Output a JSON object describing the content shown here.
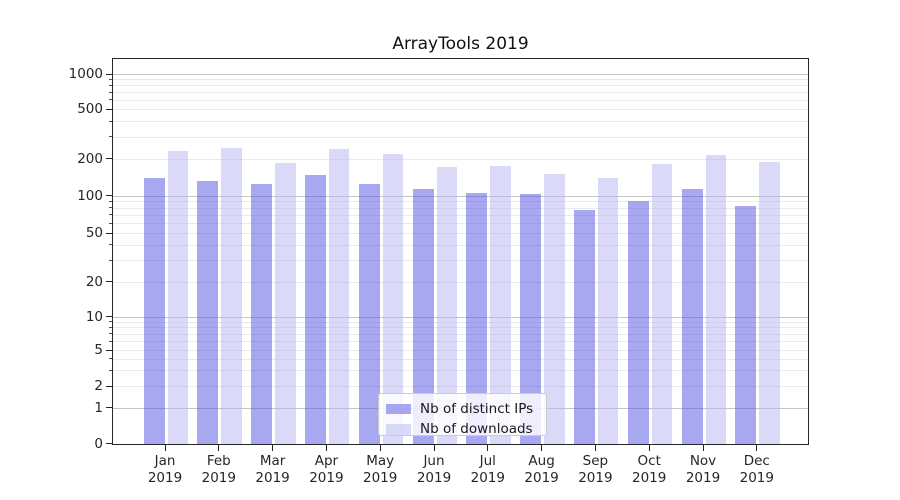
{
  "chart_data": {
    "type": "bar",
    "title": "ArrayTools 2019",
    "xlabel": "",
    "ylabel": "",
    "yscale": "symlog",
    "ylim": [
      0,
      1300
    ],
    "grid": true,
    "legend_position": "lower center",
    "yticks": [
      0,
      1,
      2,
      5,
      10,
      20,
      50,
      100,
      200,
      500,
      1000
    ],
    "categories": [
      "Jan 2019",
      "Feb 2019",
      "Mar 2019",
      "Apr 2019",
      "May 2019",
      "Jun 2019",
      "Jul 2019",
      "Aug 2019",
      "Sep 2019",
      "Oct 2019",
      "Nov 2019",
      "Dec 2019"
    ],
    "series": [
      {
        "name": "Nb of distinct IPs",
        "color": "#5151E1",
        "alpha": 0.5,
        "rendered_color": "#A8A8F0",
        "values": [
          139,
          132,
          125,
          148,
          124,
          113,
          105,
          103,
          77,
          90,
          112,
          82
        ]
      },
      {
        "name": "Nb of downloads",
        "color": "#B5B5F1",
        "alpha": 0.5,
        "rendered_color": "#DADAF8",
        "values": [
          229,
          245,
          183,
          240,
          216,
          170,
          175,
          151,
          139,
          180,
          212,
          188
        ]
      }
    ],
    "colors": {
      "axes": "#262626",
      "grid_major": "#c4c4c4",
      "grid_minor": "#e9e9ef",
      "background": "#ffffff"
    }
  }
}
